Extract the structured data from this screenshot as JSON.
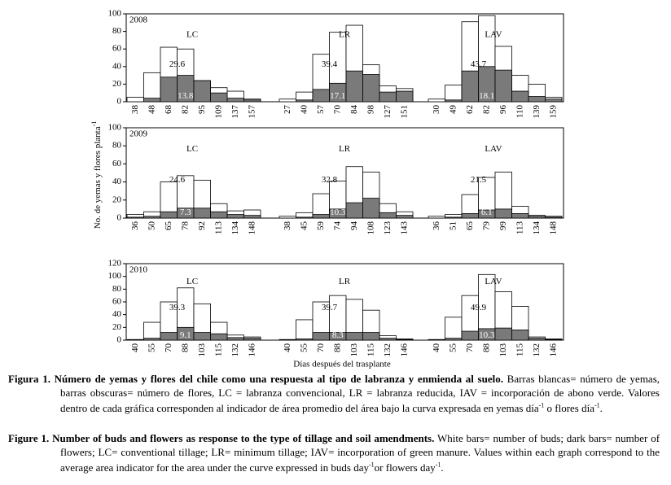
{
  "chart_data": [
    {
      "type": "bar",
      "title": "2008",
      "ylim": [
        0,
        100
      ],
      "yticks": [
        0,
        20,
        40,
        60,
        80,
        100
      ],
      "panels": [
        {
          "label": "LC",
          "categories": [
            "38",
            "48",
            "68",
            "82",
            "95",
            "109",
            "137",
            "157"
          ],
          "series": [
            {
              "color": "#ffffff",
              "values": [
                5,
                33,
                62,
                60,
                24,
                16,
                12,
                3
              ]
            },
            {
              "color": "#7a7a7a",
              "values": [
                0,
                4,
                28,
                30,
                24,
                10,
                4,
                2
              ]
            }
          ],
          "annotations": [
            "29.6",
            "13.8"
          ]
        },
        {
          "label": "LR",
          "categories": [
            "27",
            "40",
            "57",
            "70",
            "84",
            "98",
            "127",
            "151"
          ],
          "series": [
            {
              "color": "#ffffff",
              "values": [
                3,
                11,
                54,
                79,
                87,
                42,
                18,
                15
              ]
            },
            {
              "color": "#7a7a7a",
              "values": [
                0,
                2,
                14,
                21,
                35,
                31,
                11,
                12
              ]
            }
          ],
          "annotations": [
            "39.4",
            "17.1"
          ]
        },
        {
          "label": "LAV",
          "categories": [
            "30",
            "49",
            "62",
            "82",
            "96",
            "110",
            "139",
            "159"
          ],
          "series": [
            {
              "color": "#ffffff",
              "values": [
                3,
                19,
                91,
                98,
                63,
                30,
                20,
                5
              ]
            },
            {
              "color": "#7a7a7a",
              "values": [
                0,
                2,
                35,
                40,
                36,
                12,
                6,
                3
              ]
            }
          ],
          "annotations": [
            "43.7",
            "18.1"
          ]
        }
      ]
    },
    {
      "type": "bar",
      "title": "2009",
      "ylim": [
        0,
        100
      ],
      "yticks": [
        0,
        20,
        40,
        60,
        80,
        100
      ],
      "panels": [
        {
          "label": "LC",
          "categories": [
            "36",
            "50",
            "65",
            "78",
            "92",
            "113",
            "134",
            "148"
          ],
          "series": [
            {
              "color": "#ffffff",
              "values": [
                4,
                7,
                40,
                47,
                42,
                16,
                8,
                9
              ]
            },
            {
              "color": "#7a7a7a",
              "values": [
                1,
                2,
                7,
                11,
                11,
                7,
                4,
                3
              ]
            }
          ],
          "annotations": [
            "24.6",
            "7.3"
          ]
        },
        {
          "label": "LR",
          "categories": [
            "38",
            "45",
            "59",
            "74",
            "94",
            "108",
            "123",
            "143"
          ],
          "series": [
            {
              "color": "#ffffff",
              "values": [
                2,
                6,
                27,
                41,
                57,
                51,
                16,
                7
              ]
            },
            {
              "color": "#7a7a7a",
              "values": [
                0,
                1,
                4,
                10,
                17,
                22,
                6,
                3
              ]
            }
          ],
          "annotations": [
            "32.8",
            "10.3"
          ]
        },
        {
          "label": "LAV",
          "categories": [
            "36",
            "51",
            "65",
            "79",
            "99",
            "113",
            "134",
            "148"
          ],
          "series": [
            {
              "color": "#ffffff",
              "values": [
                2,
                4,
                26,
                45,
                51,
                13,
                3,
                2
              ]
            },
            {
              "color": "#7a7a7a",
              "values": [
                0,
                1,
                5,
                9,
                10,
                5,
                2,
                1
              ]
            }
          ],
          "annotations": [
            "21.5",
            "6.1"
          ]
        }
      ]
    },
    {
      "type": "bar",
      "title": "2010",
      "ylim": [
        0,
        120
      ],
      "yticks": [
        0,
        20,
        40,
        60,
        80,
        100,
        120
      ],
      "panels": [
        {
          "label": "LC",
          "categories": [
            "40",
            "55",
            "70",
            "88",
            "103",
            "115",
            "132",
            "146"
          ],
          "series": [
            {
              "color": "#ffffff",
              "values": [
                1,
                28,
                60,
                82,
                57,
                28,
                8,
                5
              ]
            },
            {
              "color": "#7a7a7a",
              "values": [
                0,
                3,
                12,
                20,
                12,
                10,
                4,
                3
              ]
            }
          ],
          "annotations": [
            "39.3",
            "9.1"
          ]
        },
        {
          "label": "LR",
          "categories": [
            "40",
            "55",
            "70",
            "88",
            "103",
            "115",
            "132",
            "146"
          ],
          "series": [
            {
              "color": "#ffffff",
              "values": [
                1,
                32,
                60,
                70,
                64,
                47,
                7,
                2
              ]
            },
            {
              "color": "#7a7a7a",
              "values": [
                0,
                2,
                12,
                12,
                12,
                12,
                3,
                1
              ]
            }
          ],
          "annotations": [
            "39.7",
            "8.3"
          ]
        },
        {
          "label": "LAV",
          "categories": [
            "40",
            "55",
            "70",
            "88",
            "103",
            "115",
            "132",
            "146"
          ],
          "series": [
            {
              "color": "#ffffff",
              "values": [
                1,
                36,
                70,
                103,
                76,
                53,
                5,
                2
              ]
            },
            {
              "color": "#7a7a7a",
              "values": [
                0,
                3,
                14,
                18,
                19,
                16,
                3,
                1
              ]
            }
          ],
          "annotations": [
            "49.9",
            "10.3"
          ]
        }
      ]
    }
  ],
  "y_label": [
    "No. de yemas y flores planta",
    "-1"
  ],
  "x_label": "Días después del trasplante",
  "caption_es": {
    "label": "Figura 1.",
    "title": "Número de yemas y flores del chile como una respuesta al tipo de labranza y enmienda al suelo.",
    "body": [
      "Barras blancas= número de yemas, barras obscuras= número de flores, LC = labranza convencional, LR = labranza reducida, IAV = incorporación de abono verde. Valores dentro de cada gráfica corresponden al indicador de área promedio del área bajo la curva expresada en yemas día",
      "-1",
      " o flores día",
      "-1",
      "."
    ]
  },
  "caption_en": {
    "label": "Figure 1.",
    "title": "Number of buds and flowers as response to the type of tillage and soil amendments.",
    "body": [
      "White bars= number of buds; dark bars= number of flowers; LC= conventional tillage; LR= minimum tillage; IAV= incorporation of green manure. Values within each graph correspond to the average area indicator for the area under the curve expressed in buds day",
      "-1",
      "or flowers day",
      "-1",
      "."
    ]
  }
}
